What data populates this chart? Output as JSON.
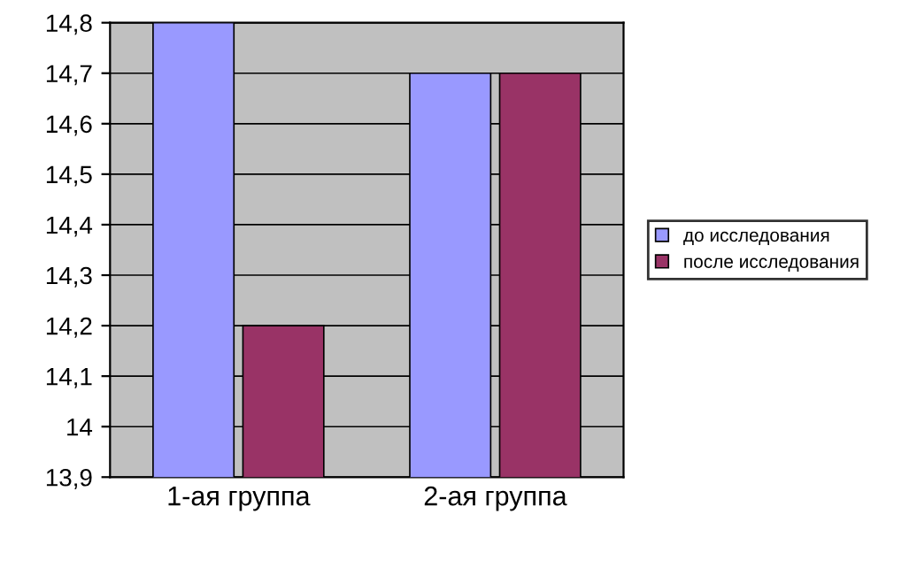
{
  "chart_data": {
    "type": "bar",
    "categories": [
      "1-ая группа",
      "2-ая группа"
    ],
    "series": [
      {
        "name": "до исследования",
        "color": "#9999ff",
        "values": [
          14.8,
          14.7
        ]
      },
      {
        "name": "после исследования",
        "color": "#993366",
        "values": [
          14.2,
          14.7
        ]
      }
    ],
    "ylim": [
      13.9,
      14.8
    ],
    "yticks": [
      {
        "value": 13.9,
        "label": "13,9"
      },
      14,
      {
        "value": 14.1,
        "label": "14,1"
      },
      {
        "value": 14.2,
        "label": "14,2"
      },
      {
        "value": 14.3,
        "label": "14,3"
      },
      {
        "value": 14.4,
        "label": "14,4"
      },
      {
        "value": 14.5,
        "label": "14,5"
      },
      {
        "value": 14.6,
        "label": "14,6"
      },
      {
        "value": 14.7,
        "label": "14,7"
      },
      {
        "value": 14.8,
        "label": "14,8"
      }
    ],
    "grid": "y",
    "legend": "right"
  }
}
